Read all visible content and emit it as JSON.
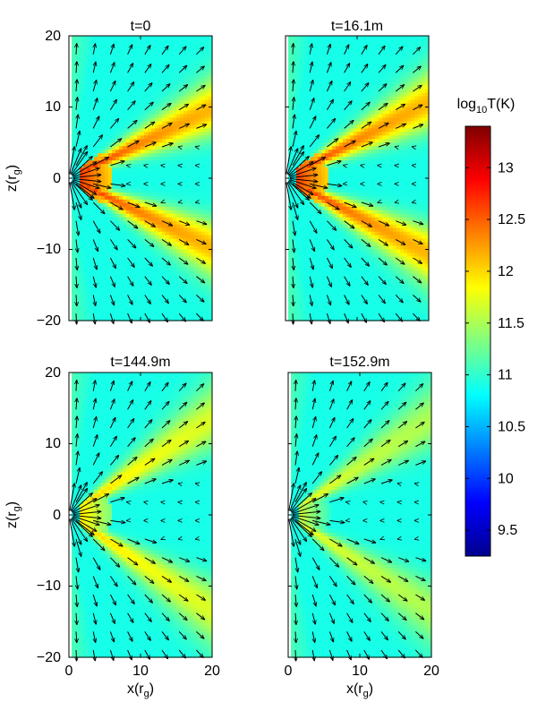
{
  "chart_data": [
    {
      "type": "heatmap",
      "title": "t=0",
      "xlabel": "",
      "ylabel": "z(r_g)",
      "xlim": [
        0,
        20
      ],
      "ylim": [
        -20,
        20
      ],
      "x_ticks": [
        "0",
        "10",
        "20"
      ],
      "y_ticks": [
        "20",
        "10",
        "0",
        "−10",
        "−20"
      ],
      "hot_jet_angle_deg": 26,
      "hot_jet_peak_log10T": 12.9,
      "overlay": "velocity arrows"
    },
    {
      "type": "heatmap",
      "title": "t=16.1m",
      "xlabel": "",
      "ylabel": "",
      "xlim": [
        0,
        20
      ],
      "ylim": [
        -20,
        20
      ],
      "x_ticks": [
        "0",
        "10",
        "20"
      ],
      "y_ticks": [
        "20",
        "10",
        "0",
        "−10",
        "−20"
      ],
      "hot_jet_angle_deg": 28,
      "hot_jet_peak_log10T": 12.9,
      "overlay": "velocity arrows"
    },
    {
      "type": "heatmap",
      "title": "t=144.9m",
      "xlabel": "x(r_g)",
      "ylabel": "z(r_g)",
      "xlim": [
        0,
        20
      ],
      "ylim": [
        -20,
        20
      ],
      "x_ticks": [
        "0",
        "10",
        "20"
      ],
      "y_ticks": [
        "20",
        "10",
        "0",
        "−10",
        "−20"
      ],
      "hot_jet_angle_deg": 34,
      "hot_jet_peak_log10T": 12.2,
      "overlay": "velocity arrows"
    },
    {
      "type": "heatmap",
      "title": "t=152.9m",
      "xlabel": "x(r_g)",
      "ylabel": "",
      "xlim": [
        0,
        20
      ],
      "ylim": [
        -20,
        20
      ],
      "x_ticks": [
        "0",
        "10",
        "20"
      ],
      "y_ticks": [
        "20",
        "10",
        "0",
        "−10",
        "−20"
      ],
      "hot_jet_angle_deg": 34,
      "hot_jet_peak_log10T": 11.9,
      "overlay": "velocity arrows"
    }
  ],
  "colorbar": {
    "label_prefix": "log",
    "label_sub": "10",
    "label_suffix": "T(K)",
    "range": [
      9.25,
      13.4
    ],
    "ticks": [
      "13",
      "12.5",
      "12",
      "11.5",
      "11",
      "10.5",
      "10",
      "9.5"
    ],
    "colors": [
      "#00008f",
      "#0000ff",
      "#0080ff",
      "#00ffff",
      "#80ff80",
      "#ffff00",
      "#ff8000",
      "#ff0000",
      "#800000"
    ]
  }
}
